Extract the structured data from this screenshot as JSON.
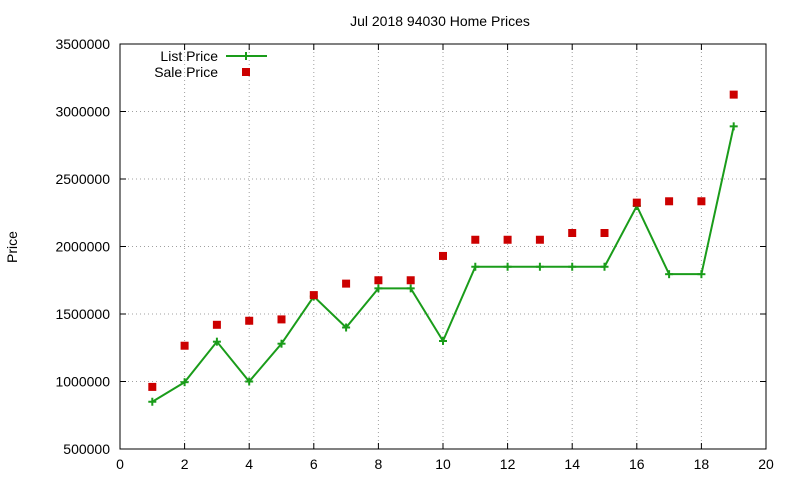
{
  "chart_data": {
    "type": "line",
    "title": "Jul 2018 94030 Home Prices",
    "xlabel": "",
    "ylabel": "Price",
    "xlim": [
      0,
      20
    ],
    "ylim": [
      500000,
      3500000
    ],
    "x_ticks": [
      0,
      2,
      4,
      6,
      8,
      10,
      12,
      14,
      16,
      18,
      20
    ],
    "y_ticks": [
      500000,
      1000000,
      1500000,
      2000000,
      2500000,
      3000000,
      3500000
    ],
    "x_tick_labels": [
      "0",
      "2",
      "4",
      "6",
      "8",
      "10",
      "12",
      "14",
      "16",
      "18",
      "20"
    ],
    "y_tick_labels": [
      "500000",
      "1000000",
      "1500000",
      "2000000",
      "2500000",
      "3000000",
      "3500000"
    ],
    "grid": true,
    "legend_position": "top-left",
    "series": [
      {
        "name": "List Price",
        "style": "line-plus",
        "color": "#1a9c1a",
        "x": [
          1,
          2,
          3,
          4,
          5,
          6,
          7,
          8,
          9,
          10,
          11,
          12,
          13,
          14,
          15,
          16,
          17,
          18,
          19
        ],
        "values": [
          850000,
          995000,
          1295000,
          1000000,
          1280000,
          1630000,
          1400000,
          1690000,
          1690000,
          1300000,
          1850000,
          1850000,
          1850000,
          1850000,
          1850000,
          2300000,
          1795000,
          1795000,
          2890000
        ]
      },
      {
        "name": "Sale Price",
        "style": "square",
        "color": "#cc0000",
        "x": [
          1,
          2,
          3,
          4,
          5,
          6,
          7,
          8,
          9,
          10,
          11,
          12,
          13,
          14,
          15,
          16,
          17,
          18,
          19
        ],
        "values": [
          960000,
          1265000,
          1420000,
          1450000,
          1460000,
          1640000,
          1725000,
          1750000,
          1750000,
          1930000,
          2050000,
          2050000,
          2050000,
          2100000,
          2100000,
          2325000,
          2335000,
          2335000,
          3125000
        ]
      }
    ]
  }
}
